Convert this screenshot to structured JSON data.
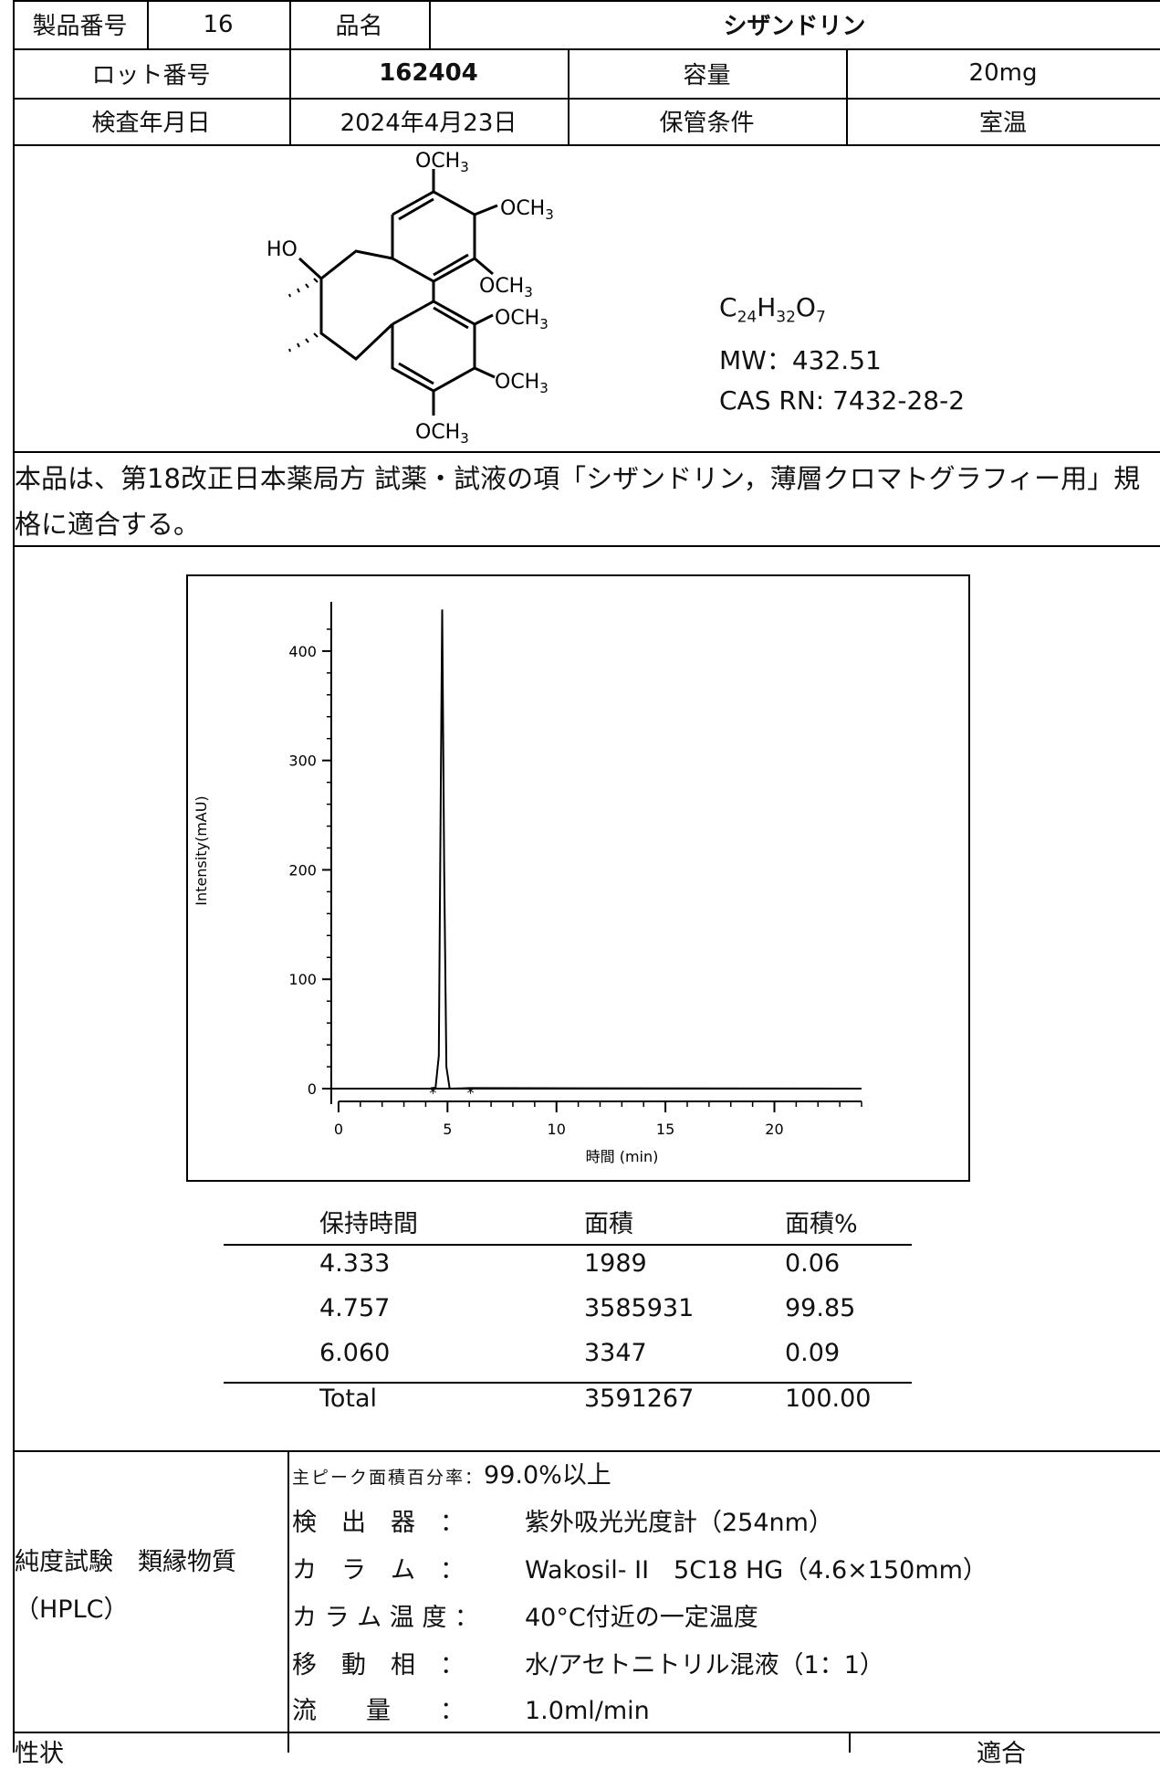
{
  "header": {
    "product_no_label": "製品番号",
    "product_no": "16",
    "name_label": "品名",
    "name": "シザンドリン",
    "lot_label": "ロット番号",
    "lot": "162404",
    "volume_label": "容量",
    "volume": "20mg",
    "date_label": "検査年月日",
    "date": "2024年4月23日",
    "storage_label": "保管条件",
    "storage": "室温"
  },
  "structure": {
    "labels": [
      "OCH3",
      "OCH3",
      "OCH3",
      "OCH3",
      "OCH3",
      "OCH3",
      "HO"
    ],
    "formula_c": "C",
    "formula_c_n": "24",
    "formula_h": "H",
    "formula_h_n": "32",
    "formula_o": "O",
    "formula_o_n": "7",
    "mw": "MW：432.51",
    "cas": "CAS RN: 7432-28-2"
  },
  "note": "本品は、第18改正日本薬局方 試薬・試液の項「シザンドリン，薄層クロマトグラフィー用」規格に適合する。",
  "chart_data": {
    "type": "line",
    "xlabel": "時間 (min)",
    "ylabel": "Intensity(mAU)",
    "xlim": [
      -0.5,
      24
    ],
    "ylim": [
      -10,
      445
    ],
    "xticks": [
      0,
      5,
      10,
      15,
      20
    ],
    "yticks": [
      0,
      100,
      200,
      300,
      400
    ],
    "peak_markers": [
      4.333,
      6.06
    ],
    "series": [
      {
        "x": [
          0,
          4.2,
          4.333,
          4.45,
          4.6,
          4.7,
          4.757,
          4.85,
          4.95,
          5.1,
          6.06,
          24
        ],
        "y": [
          0,
          0,
          0.8,
          0.5,
          30,
          300,
          438,
          200,
          20,
          0,
          0.5,
          0
        ]
      }
    ]
  },
  "results": {
    "headers": [
      "保持時間",
      "面積",
      "面積%"
    ],
    "rows": [
      [
        "4.333",
        "1989",
        "0.06"
      ],
      [
        "4.757",
        "3585931",
        "99.85"
      ],
      [
        "6.060",
        "3347",
        "0.09"
      ]
    ],
    "total": [
      "Total",
      "3591267",
      "100.00"
    ]
  },
  "purity": {
    "title_line1": "純度試験　類縁物質",
    "title_line2": "（HPLC）",
    "conditions": [
      {
        "label": "主ピーク面積百分率：",
        "value": "99.0%以上"
      },
      {
        "label": "検　出　器　：",
        "value": "紫外吸光光度計（254nm）"
      },
      {
        "label": "カ　ラ　ム　：",
        "value": "Wakosil- II　5C18 HG（4.6×150mm）"
      },
      {
        "label": "カ ラ ム 温 度 ：",
        "value": "40°C付近の一定温度"
      },
      {
        "label": "移　動　相　：",
        "value": "水/アセトニトリル混液（1：1）"
      },
      {
        "label": "流　　量　　：",
        "value": "1.0ml/min"
      }
    ]
  },
  "appearance": {
    "label": "性状",
    "result": "適合"
  }
}
